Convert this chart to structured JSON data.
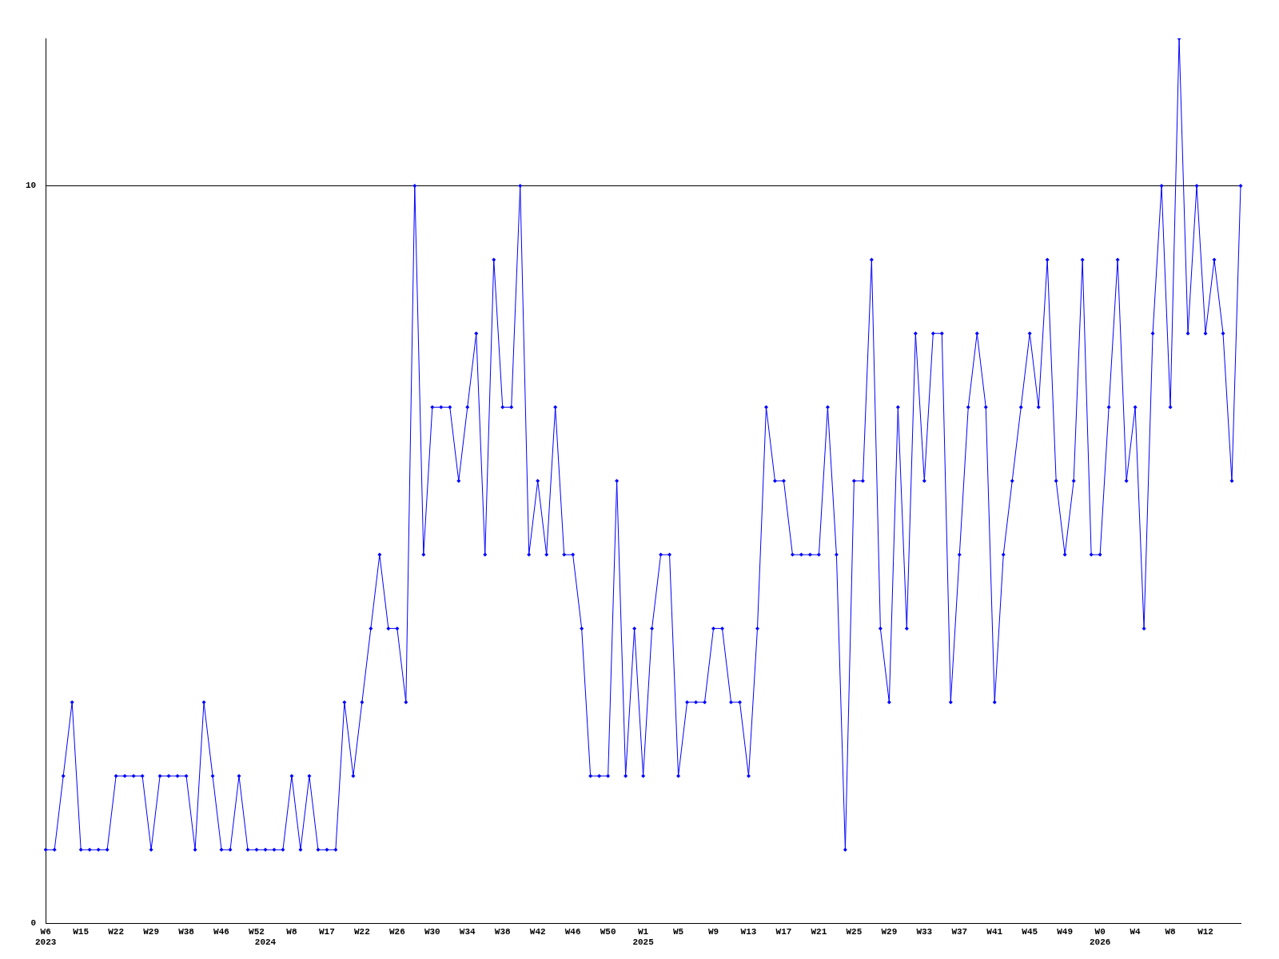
{
  "chart_data": {
    "type": "line",
    "categories": [
      "W6\n2023",
      null,
      null,
      null,
      "W15",
      null,
      null,
      null,
      "W22",
      null,
      null,
      null,
      "W29",
      null,
      null,
      null,
      "W38",
      null,
      null,
      null,
      "W46",
      null,
      null,
      null,
      "W52",
      "\n2024",
      null,
      null,
      "W8",
      null,
      null,
      null,
      "W17",
      null,
      null,
      null,
      "W22",
      null,
      null,
      null,
      "W26",
      null,
      null,
      null,
      "W30",
      null,
      null,
      null,
      "W34",
      null,
      null,
      null,
      "W38",
      null,
      null,
      null,
      "W42",
      null,
      null,
      null,
      "W46",
      null,
      null,
      null,
      "W50",
      null,
      null,
      null,
      "W1\n2025",
      null,
      null,
      null,
      "W5",
      null,
      null,
      null,
      "W9",
      null,
      null,
      null,
      "W13",
      null,
      null,
      null,
      "W17",
      null,
      null,
      null,
      "W21",
      null,
      null,
      null,
      "W25",
      null,
      null,
      null,
      "W29",
      null,
      null,
      null,
      "W33",
      null,
      null,
      null,
      "W37",
      null,
      null,
      null,
      "W41",
      null,
      null,
      null,
      "W45",
      null,
      null,
      null,
      "W49",
      null,
      null,
      null,
      "W0\n2026",
      null,
      null,
      null,
      "W4",
      null,
      null,
      null,
      "W8",
      null,
      null,
      null,
      "W12",
      null,
      null,
      null,
      null
    ],
    "series": [
      {
        "color": "#0000ff",
        "values": [
          1,
          1,
          2,
          3,
          1,
          1,
          1,
          1,
          2,
          2,
          2,
          2,
          1,
          2,
          2,
          2,
          2,
          1,
          3,
          2,
          1,
          1,
          2,
          1,
          1,
          1,
          1,
          1,
          2,
          1,
          2,
          1,
          1,
          1,
          3,
          2,
          3,
          4,
          5,
          4,
          4,
          3,
          10,
          5,
          7,
          7,
          7,
          6,
          7,
          8,
          5,
          9,
          7,
          7,
          10,
          5,
          6,
          5,
          7,
          5,
          5,
          4,
          2,
          2,
          2,
          6,
          2,
          4,
          2,
          4,
          5,
          5,
          2,
          3,
          3,
          3,
          4,
          4,
          3,
          3,
          2,
          4,
          7,
          6,
          6,
          5,
          5,
          5,
          5,
          7,
          5,
          1,
          6,
          6,
          9,
          4,
          3,
          7,
          4,
          8,
          6,
          8,
          8,
          3,
          5,
          7,
          8,
          7,
          3,
          5,
          6,
          7,
          8,
          7,
          9,
          6,
          5,
          6,
          9,
          5,
          5,
          7,
          9,
          6,
          7,
          4,
          8,
          10,
          7,
          12,
          8,
          10,
          8,
          9,
          8,
          6,
          10
        ]
      }
    ],
    "ylim": [
      0,
      12
    ],
    "yticks": [
      0,
      10
    ],
    "grid": "y",
    "marker": "diamond",
    "line_style": "solid",
    "legend": false
  }
}
